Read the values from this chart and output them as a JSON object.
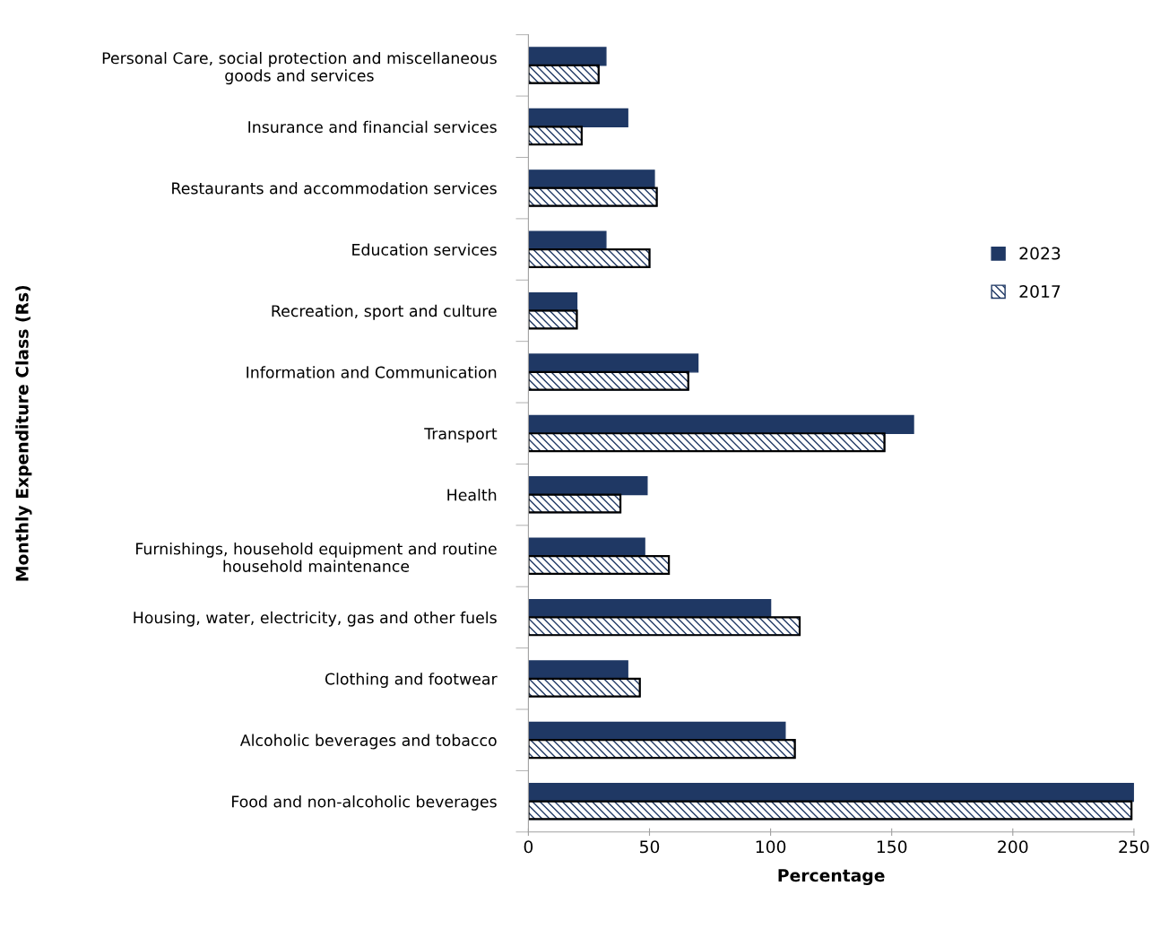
{
  "chart_data": {
    "type": "bar",
    "orientation": "horizontal",
    "xlabel": "Percentage",
    "ylabel": "Monthly Expenditure Class (Rs)",
    "categories": [
      "Personal Care, social protection and miscellaneous\ngoods and services",
      "Insurance and financial services",
      "Restaurants and accommodation services",
      "Education services",
      "Recreation, sport and culture",
      "Information and Communication",
      "Transport",
      "Health",
      "Furnishings, household equipment and routine\nhousehold maintenance",
      "Housing, water, electricity, gas and other fuels",
      "Clothing and footwear",
      "Alcoholic beverages and tobacco",
      "Food and non-alcoholic beverages"
    ],
    "series": [
      {
        "name": "2023",
        "color": "#1f3864",
        "values": [
          32,
          41,
          52,
          32,
          20,
          70,
          159,
          49,
          48,
          100,
          41,
          106,
          250
        ]
      },
      {
        "name": "2017",
        "color": "#1f3864",
        "values": [
          29,
          22,
          53,
          50,
          20,
          66,
          147,
          38,
          58,
          112,
          46,
          110,
          249
        ]
      }
    ],
    "xlim": [
      0,
      250
    ],
    "xticks": [
      0,
      50,
      100,
      150,
      200,
      250
    ],
    "grid": false,
    "legend": "right"
  }
}
